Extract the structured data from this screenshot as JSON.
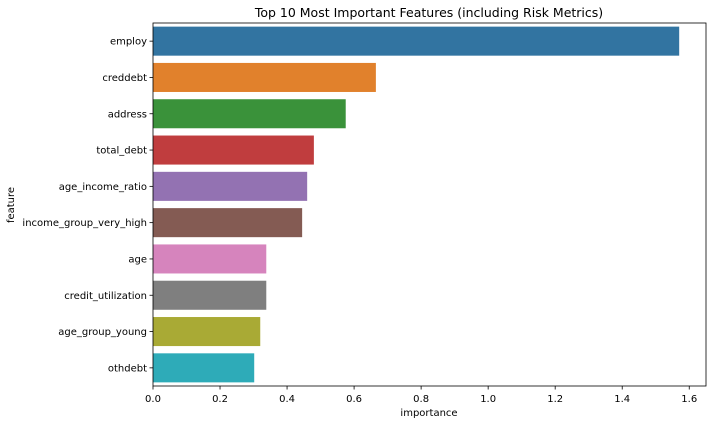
{
  "chart_data": {
    "type": "bar",
    "orientation": "horizontal",
    "title": "Top 10 Most Important Features (including Risk Metrics)",
    "xlabel": "importance",
    "ylabel": "feature",
    "xlim": [
      0,
      1.65
    ],
    "xticks": [
      "0.0",
      "0.2",
      "0.4",
      "0.6",
      "0.8",
      "1.0",
      "1.2",
      "1.4",
      "1.6"
    ],
    "grid": false,
    "categories": [
      "employ",
      "creddebt",
      "address",
      "total_debt",
      "age_income_ratio",
      "income_group_very_high",
      "age",
      "credit_utilization",
      "age_group_young",
      "othdebt"
    ],
    "values": [
      1.57,
      0.665,
      0.575,
      0.48,
      0.46,
      0.445,
      0.338,
      0.338,
      0.32,
      0.302
    ],
    "colors": [
      "#3274a1",
      "#e1812c",
      "#3a923a",
      "#c03d3e",
      "#9372b2",
      "#845b53",
      "#d684bd",
      "#7f7f7f",
      "#a9aa35",
      "#2eabb8"
    ]
  }
}
